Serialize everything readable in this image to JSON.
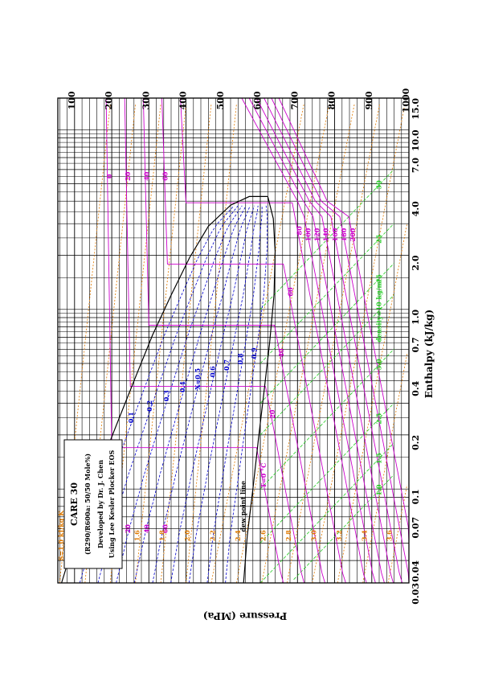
{
  "chart_data": {
    "type": "line",
    "title": "CARE 30",
    "info_lines": [
      "(R290/R600a: 50/50 Mole%)",
      "Developed by Dr. J. Chen",
      "Using Lee Kesler Plocker EOS"
    ],
    "xlabel": "Enthalpy (kJ/kg)",
    "ylabel": "Pressure (MPa)",
    "x_scale": "linear",
    "y_scale": "log",
    "xlim": [
      55,
      1000
    ],
    "ylim": [
      0.03,
      15.0
    ],
    "grid": true,
    "x_ticks": [
      "100",
      "200",
      "300",
      "400",
      "500",
      "600",
      "700",
      "800",
      "900",
      "1000"
    ],
    "x_tick_values": [
      100,
      200,
      300,
      400,
      500,
      600,
      700,
      800,
      900,
      1000
    ],
    "y_ticks": [
      "0.03",
      "0.04",
      "0.07",
      "0.1",
      "0.2",
      "0.4",
      "0.7",
      "1.0",
      "2.0",
      "4.0",
      "7.0",
      "10.0",
      "15.0"
    ],
    "y_tick_values": [
      0.03,
      0.04,
      0.07,
      0.1,
      0.2,
      0.4,
      0.7,
      1.0,
      2.0,
      4.0,
      7.0,
      10.0,
      15.0
    ],
    "saturation": {
      "bubble_label": "bubble point line",
      "dew_label": "dew point line",
      "bubble": [
        [
          65,
          0.03
        ],
        [
          110,
          0.06
        ],
        [
          160,
          0.12
        ],
        [
          210,
          0.22
        ],
        [
          260,
          0.4
        ],
        [
          310,
          0.72
        ],
        [
          360,
          1.2
        ],
        [
          410,
          1.95
        ],
        [
          460,
          2.9
        ],
        [
          520,
          3.8
        ],
        [
          570,
          4.25
        ],
        [
          620,
          4.25
        ]
      ],
      "dew": [
        [
          620,
          4.25
        ],
        [
          635,
          3.2
        ],
        [
          640,
          2.1
        ],
        [
          637,
          1.2
        ],
        [
          625,
          0.65
        ],
        [
          610,
          0.35
        ],
        [
          595,
          0.19
        ],
        [
          580,
          0.1
        ],
        [
          565,
          0.055
        ],
        [
          555,
          0.03
        ]
      ]
    },
    "isotherm_labels": {
      "T_prefix": "T=",
      "unit": "°C",
      "liquid_left": [
        "0",
        "20",
        "40",
        "60"
      ],
      "liquid_right": [
        "0",
        "20",
        "40",
        "60"
      ],
      "vapor": [
        "0",
        "20",
        "40",
        "60",
        "80",
        "100",
        "120",
        "140",
        "160",
        "180",
        "200"
      ]
    },
    "isentrope_labels": {
      "prefix": "S=",
      "unit": "kJ/kg K",
      "values": [
        "1.0",
        "1.2",
        "1.4",
        "1.6",
        "1.8",
        "2.0",
        "2.2",
        "2.4",
        "2.6",
        "2.8",
        "3.0",
        "3.2",
        "3.4",
        "3.6"
      ]
    },
    "quality_labels": {
      "prefix": "X=",
      "values": [
        "0.1",
        "0.2",
        "0.3",
        "0.4",
        "0.5",
        "0.6",
        "0.7",
        "0.8",
        "0.9"
      ]
    },
    "density_labels": {
      "prefix": "density=",
      "unit": "kg/m³",
      "values": [
        "1.0",
        "1.5",
        "2.5",
        "5.0",
        "10",
        "15",
        "25",
        "50"
      ]
    },
    "colors": {
      "grid": "#000000",
      "saturation": "#000000",
      "isotherm": "#cc00cc",
      "isentrope": "#e07a00",
      "quality": "#0000cc",
      "density": "#22cc22",
      "background": "#ffffff"
    }
  }
}
